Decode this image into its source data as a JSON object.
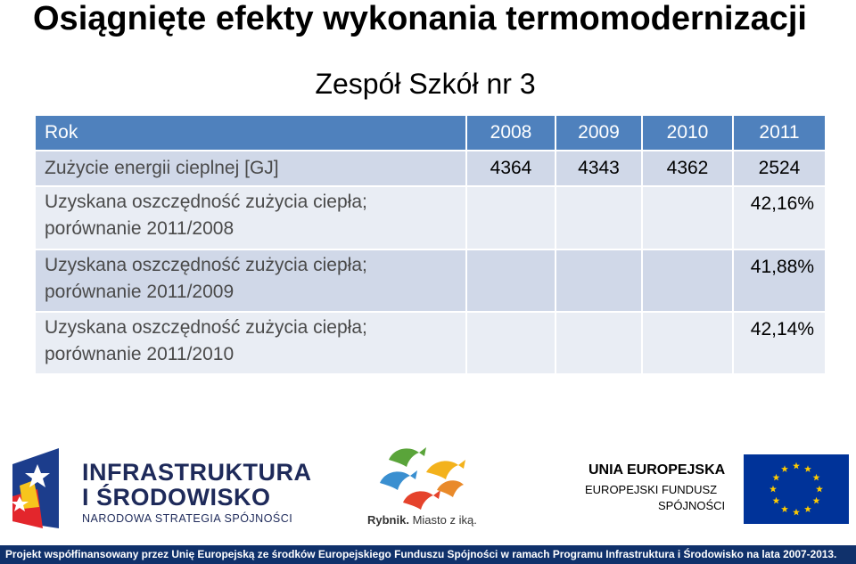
{
  "title": "Osiągnięte efekty wykonania termomodernizacji",
  "subtitle": "Zespół Szkół nr 3",
  "table": {
    "header": {
      "label": "Rok",
      "years": [
        "2008",
        "2009",
        "2010",
        "2011"
      ]
    },
    "energy_row": {
      "label": "Zużycie  energii cieplnej [GJ]",
      "values": [
        "4364",
        "4343",
        "4362",
        "2524"
      ]
    },
    "savings_rows": [
      {
        "label_line1": "Uzyskana oszczędność  zużycia  ciepła;",
        "label_line2": "porównanie 2011/2008",
        "value": "42,16%"
      },
      {
        "label_line1": "Uzyskana oszczędność  zużycia  ciepła;",
        "label_line2": "porównanie 2011/2009",
        "value": "41,88%"
      },
      {
        "label_line1": "Uzyskana oszczędność  zużycia  ciepła;",
        "label_line2": "porównanie 2011/2010",
        "value": "42,14%"
      }
    ]
  },
  "logos": {
    "ifs": {
      "line1": "INFRASTRUKTURA",
      "line2": "I ŚRODOWISKO",
      "line3": "NARODOWA STRATEGIA SPÓJNOŚCI"
    },
    "rybnik": {
      "name": "Rybnik.",
      "slogan": " Miasto z iką."
    },
    "ue": {
      "line1": "UNIA EUROPEJSKA",
      "line2": "EUROPEJSKI FUNDUSZ",
      "line3": "SPÓJNOŚCI"
    }
  },
  "footer": "Projekt współfinansowany przez Unię Europejską ze środków Europejskiego Funduszu Spójności w ramach Programu Infrastruktura i Środowisko na lata 2007-2013.",
  "colors": {
    "header_blue": "#4f81bd",
    "row_dark": "#d0d8e8",
    "row_light": "#e9edf4",
    "footer_navy": "#10316b",
    "eu_blue": "#003399",
    "eu_star": "#ffcc00"
  }
}
